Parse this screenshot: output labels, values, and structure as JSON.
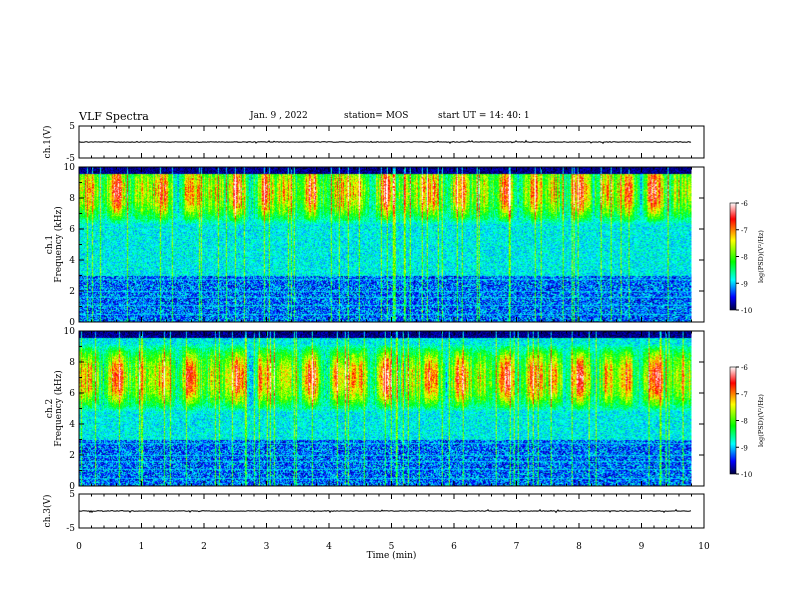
{
  "header": {
    "title": "VLF Spectra",
    "date": "Jan. 9 , 2022",
    "station": "station= MOS",
    "start_ut": "start UT =  14: 40: 1"
  },
  "chart_data": [
    {
      "type": "line",
      "panel": "ch1-waveform",
      "ylabel": "ch.1(V)",
      "yticks": [
        "5",
        "-5"
      ],
      "ylim": [
        -5,
        5
      ],
      "xlim": [
        0,
        10
      ],
      "description_values": {
        "level": 0
      }
    },
    {
      "type": "heatmap",
      "panel": "ch1-spectrogram",
      "ylabel": "ch.1\nFrequency (kHz)",
      "ylabel_line1": "ch.1",
      "ylabel_line2": "Frequency (kHz)",
      "yticks": [
        "0",
        "2",
        "4",
        "6",
        "8",
        "10"
      ],
      "ylim": [
        0,
        10
      ],
      "xlim": [
        0,
        9.8
      ],
      "peak_band_khz": [
        7.5,
        9.5
      ],
      "colorbar": {
        "label": "log(PSD)(V²/Hz)",
        "ticks": [
          "-6",
          "-7",
          "-8",
          "-9",
          "-10"
        ],
        "range": [
          -10,
          -6
        ]
      }
    },
    {
      "type": "heatmap",
      "panel": "ch2-spectrogram",
      "ylabel": "ch.2\nFrequency (kHz)",
      "ylabel_line1": "ch.2",
      "ylabel_line2": "Frequency (kHz)",
      "yticks": [
        "0",
        "2",
        "4",
        "6",
        "8",
        "10"
      ],
      "ylim": [
        0,
        10
      ],
      "xlim": [
        0,
        9.8
      ],
      "peak_band_khz": [
        6.0,
        8.0
      ],
      "colorbar": {
        "label": "log(PSD)(V²/Hz)",
        "ticks": [
          "-6",
          "-7",
          "-8",
          "-9",
          "-10"
        ],
        "range": [
          -10,
          -6
        ]
      }
    },
    {
      "type": "line",
      "panel": "ch3-waveform",
      "ylabel": "ch.3(V)",
      "yticks": [
        "5",
        "-5"
      ],
      "ylim": [
        -5,
        5
      ],
      "xlim": [
        0,
        10
      ],
      "description_values": {
        "level": 0
      }
    }
  ],
  "xaxis": {
    "label": "Time (min)",
    "ticks": [
      "0",
      "1",
      "2",
      "3",
      "4",
      "5",
      "6",
      "7",
      "8",
      "9",
      "10"
    ],
    "range": [
      0,
      10
    ]
  },
  "colors": {
    "scale": [
      "#ffffff",
      "#ff0000",
      "#ffff00",
      "#00ff00",
      "#00ffff",
      "#0000ff",
      "#000040"
    ]
  }
}
